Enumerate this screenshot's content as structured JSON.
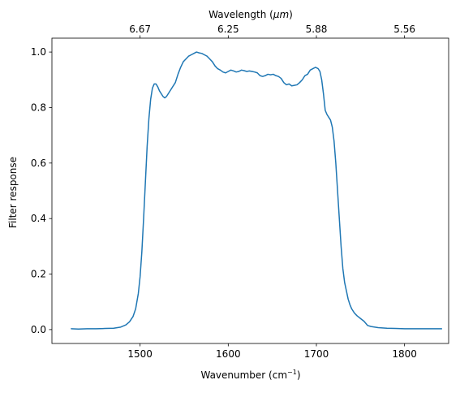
{
  "chart_data": {
    "type": "line",
    "xlabel": "Wavenumber (cm",
    "xlabel_sup": "−1",
    "xlabel_close": ")",
    "ylabel": "Filter response",
    "top_xlabel": "Wavelength (",
    "top_xlabel_unit": "μm",
    "top_xlabel_close": ")",
    "xlim": [
      1400,
      1850
    ],
    "ylim": [
      -0.05,
      1.05
    ],
    "xticks": [
      1500,
      1600,
      1700,
      1800
    ],
    "xtick_labels": [
      "1500",
      "1600",
      "1700",
      "1800"
    ],
    "yticks": [
      0.0,
      0.2,
      0.4,
      0.6,
      0.8,
      1.0
    ],
    "ytick_labels": [
      "0.0",
      "0.2",
      "0.4",
      "0.6",
      "0.8",
      "1.0"
    ],
    "top_xticks_wavenumber": [
      1500,
      1600,
      1700,
      1800
    ],
    "top_xtick_labels": [
      "6.67",
      "6.25",
      "5.88",
      "5.56"
    ],
    "grid": false,
    "series": [
      {
        "color": "#1f77b4",
        "x": [
          1422,
          1430,
          1440,
          1450,
          1460,
          1470,
          1478,
          1484,
          1488,
          1492,
          1495,
          1498,
          1500,
          1502,
          1504,
          1506,
          1508,
          1510,
          1512,
          1514,
          1516,
          1518,
          1520,
          1522,
          1524,
          1526,
          1528,
          1530,
          1533,
          1536,
          1540,
          1543,
          1546,
          1549,
          1552,
          1555,
          1558,
          1561,
          1564,
          1567,
          1570,
          1573,
          1576,
          1579,
          1582,
          1585,
          1588,
          1591,
          1594,
          1597,
          1600,
          1603,
          1606,
          1609,
          1612,
          1615,
          1618,
          1621,
          1624,
          1627,
          1630,
          1633,
          1636,
          1639,
          1642,
          1645,
          1648,
          1651,
          1654,
          1657,
          1660,
          1663,
          1666,
          1669,
          1672,
          1675,
          1678,
          1681,
          1684,
          1687,
          1690,
          1693,
          1696,
          1699,
          1702,
          1704,
          1706,
          1708,
          1710,
          1712,
          1714,
          1716,
          1718,
          1720,
          1722,
          1724,
          1726,
          1728,
          1730,
          1732,
          1734,
          1736,
          1738,
          1740,
          1743,
          1746,
          1750,
          1754,
          1758,
          1762,
          1770,
          1780,
          1790,
          1800,
          1815,
          1830,
          1842
        ],
        "y": [
          0.003,
          0.002,
          0.003,
          0.003,
          0.004,
          0.005,
          0.009,
          0.017,
          0.028,
          0.047,
          0.075,
          0.13,
          0.19,
          0.28,
          0.4,
          0.53,
          0.66,
          0.76,
          0.83,
          0.87,
          0.885,
          0.885,
          0.875,
          0.86,
          0.85,
          0.84,
          0.835,
          0.84,
          0.855,
          0.87,
          0.89,
          0.92,
          0.945,
          0.965,
          0.975,
          0.985,
          0.99,
          0.995,
          1.0,
          0.997,
          0.995,
          0.99,
          0.985,
          0.975,
          0.965,
          0.95,
          0.94,
          0.935,
          0.928,
          0.925,
          0.93,
          0.935,
          0.932,
          0.928,
          0.93,
          0.935,
          0.933,
          0.93,
          0.932,
          0.93,
          0.928,
          0.925,
          0.915,
          0.912,
          0.915,
          0.92,
          0.918,
          0.92,
          0.915,
          0.912,
          0.905,
          0.89,
          0.882,
          0.885,
          0.878,
          0.88,
          0.882,
          0.89,
          0.9,
          0.915,
          0.92,
          0.935,
          0.94,
          0.945,
          0.94,
          0.93,
          0.9,
          0.85,
          0.79,
          0.775,
          0.765,
          0.755,
          0.73,
          0.68,
          0.6,
          0.5,
          0.4,
          0.3,
          0.22,
          0.17,
          0.14,
          0.11,
          0.09,
          0.075,
          0.06,
          0.05,
          0.04,
          0.03,
          0.015,
          0.011,
          0.007,
          0.005,
          0.004,
          0.003,
          0.003,
          0.003,
          0.003
        ]
      }
    ]
  }
}
